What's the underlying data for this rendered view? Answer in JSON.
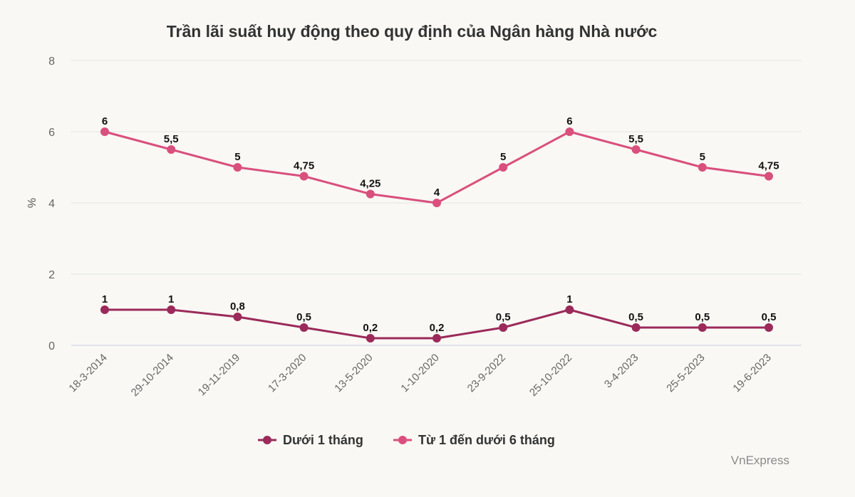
{
  "chart_data": {
    "type": "line",
    "title": "Trần lãi suất huy động theo quy định của Ngân hàng Nhà nước",
    "ylabel": "%",
    "xlabel": "",
    "ylim": [
      0,
      8
    ],
    "yticks": [
      0,
      2,
      4,
      6,
      8
    ],
    "grid": true,
    "legend_position": "bottom",
    "categories": [
      "18-3-2014",
      "29-10-2014",
      "19-11-2019",
      "17-3-2020",
      "13-5-2020",
      "1-10-2020",
      "23-9-2022",
      "25-10-2022",
      "3-4-2023",
      "25-5-2023",
      "19-6-2023"
    ],
    "series": [
      {
        "name": "Dưới 1 tháng",
        "color": "#9b2a5a",
        "values": [
          1,
          1,
          0.8,
          0.5,
          0.2,
          0.2,
          0.5,
          1,
          0.5,
          0.5,
          0.5
        ],
        "labels": [
          "1",
          "1",
          "0,8",
          "0,5",
          "0,2",
          "0,2",
          "0,5",
          "1",
          "0,5",
          "0,5",
          "0,5"
        ]
      },
      {
        "name": "Từ 1 đến dưới 6 tháng",
        "color": "#d94f7e",
        "values": [
          6,
          5.5,
          5,
          4.75,
          4.25,
          4,
          5,
          6,
          5.5,
          5,
          4.75
        ],
        "labels": [
          "6",
          "5,5",
          "5",
          "4,75",
          "4,25",
          "4",
          "5",
          "6",
          "5,5",
          "5",
          "4,75"
        ]
      }
    ]
  },
  "credit": "VnExpress"
}
